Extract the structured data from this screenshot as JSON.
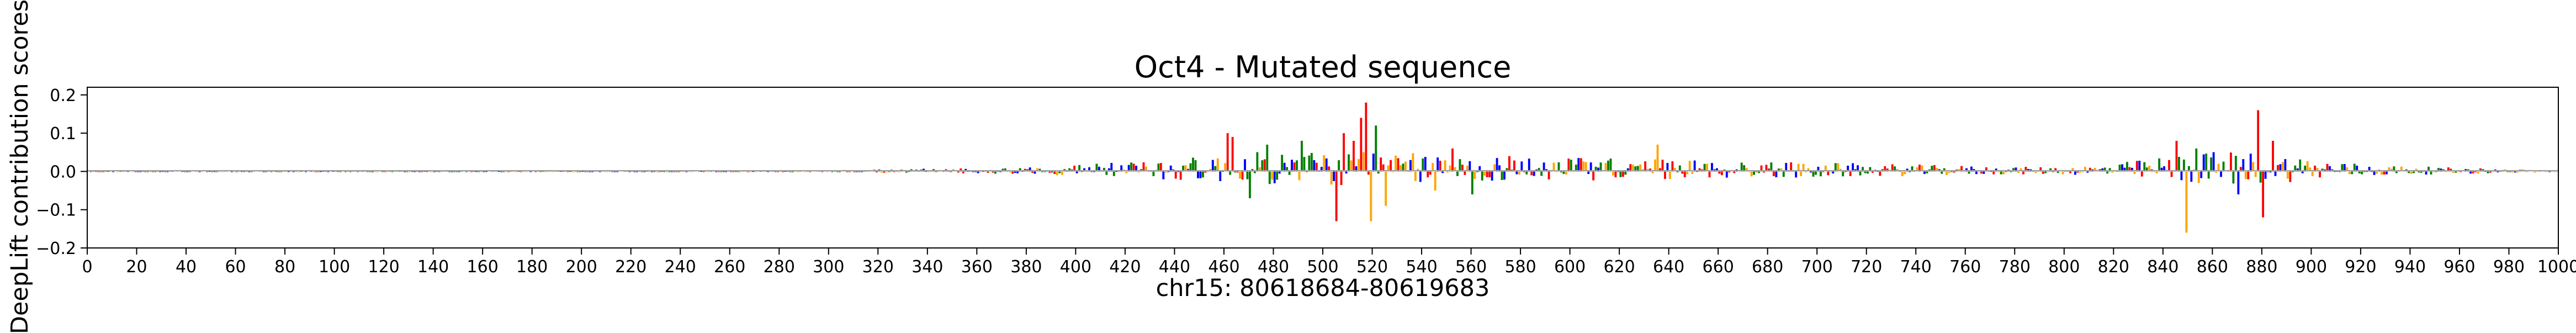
{
  "chart_data": {
    "type": "bar",
    "title": "Oct4 - Mutated sequence",
    "xlabel": "chr15: 80618684-80619683",
    "ylabel": "DeepLift contribution scores",
    "xlim": [
      0,
      1000
    ],
    "ylim": [
      -0.2,
      0.22
    ],
    "x_ticks": [
      0,
      20,
      40,
      60,
      80,
      100,
      120,
      140,
      160,
      180,
      200,
      220,
      240,
      260,
      280,
      300,
      320,
      340,
      360,
      380,
      400,
      420,
      440,
      460,
      480,
      500,
      520,
      540,
      560,
      580,
      600,
      620,
      640,
      660,
      680,
      700,
      720,
      740,
      760,
      780,
      800,
      820,
      840,
      860,
      880,
      900,
      920,
      940,
      960,
      980,
      1000
    ],
    "y_ticks": [
      -0.2,
      -0.1,
      0.0,
      0.1,
      0.2
    ],
    "y_tick_labels": [
      "−0.2",
      "−0.1",
      "0.0",
      "0.1",
      "0.2"
    ],
    "grid": false,
    "legend": "none",
    "base_colors": {
      "A": "#008000",
      "C": "#0000ff",
      "G": "#ffa500",
      "T": "#ff0000"
    },
    "baseline": 0.0,
    "notable_positions": [
      {
        "x": 461,
        "value": 0.1,
        "base": "T"
      },
      {
        "x": 463,
        "value": 0.09,
        "base": "T"
      },
      {
        "x": 470,
        "value": -0.07,
        "base": "A"
      },
      {
        "x": 477,
        "value": 0.07,
        "base": "A"
      },
      {
        "x": 491,
        "value": 0.08,
        "base": "A"
      },
      {
        "x": 505,
        "value": -0.13,
        "base": "T"
      },
      {
        "x": 508,
        "value": 0.1,
        "base": "T"
      },
      {
        "x": 512,
        "value": 0.08,
        "base": "T"
      },
      {
        "x": 515,
        "value": 0.14,
        "base": "T"
      },
      {
        "x": 517,
        "value": 0.18,
        "base": "T"
      },
      {
        "x": 519,
        "value": -0.13,
        "base": "G"
      },
      {
        "x": 521,
        "value": 0.12,
        "base": "A"
      },
      {
        "x": 525,
        "value": -0.09,
        "base": "G"
      },
      {
        "x": 545,
        "value": -0.05,
        "base": "G"
      },
      {
        "x": 552,
        "value": 0.06,
        "base": "T"
      },
      {
        "x": 560,
        "value": -0.06,
        "base": "A"
      },
      {
        "x": 575,
        "value": 0.04,
        "base": "T"
      },
      {
        "x": 635,
        "value": 0.07,
        "base": "G"
      },
      {
        "x": 845,
        "value": 0.08,
        "base": "T"
      },
      {
        "x": 849,
        "value": -0.16,
        "base": "G"
      },
      {
        "x": 853,
        "value": 0.06,
        "base": "A"
      },
      {
        "x": 870,
        "value": -0.06,
        "base": "C"
      },
      {
        "x": 878,
        "value": 0.16,
        "base": "T"
      },
      {
        "x": 880,
        "value": -0.12,
        "base": "T"
      },
      {
        "x": 884,
        "value": 0.08,
        "base": "T"
      }
    ]
  }
}
